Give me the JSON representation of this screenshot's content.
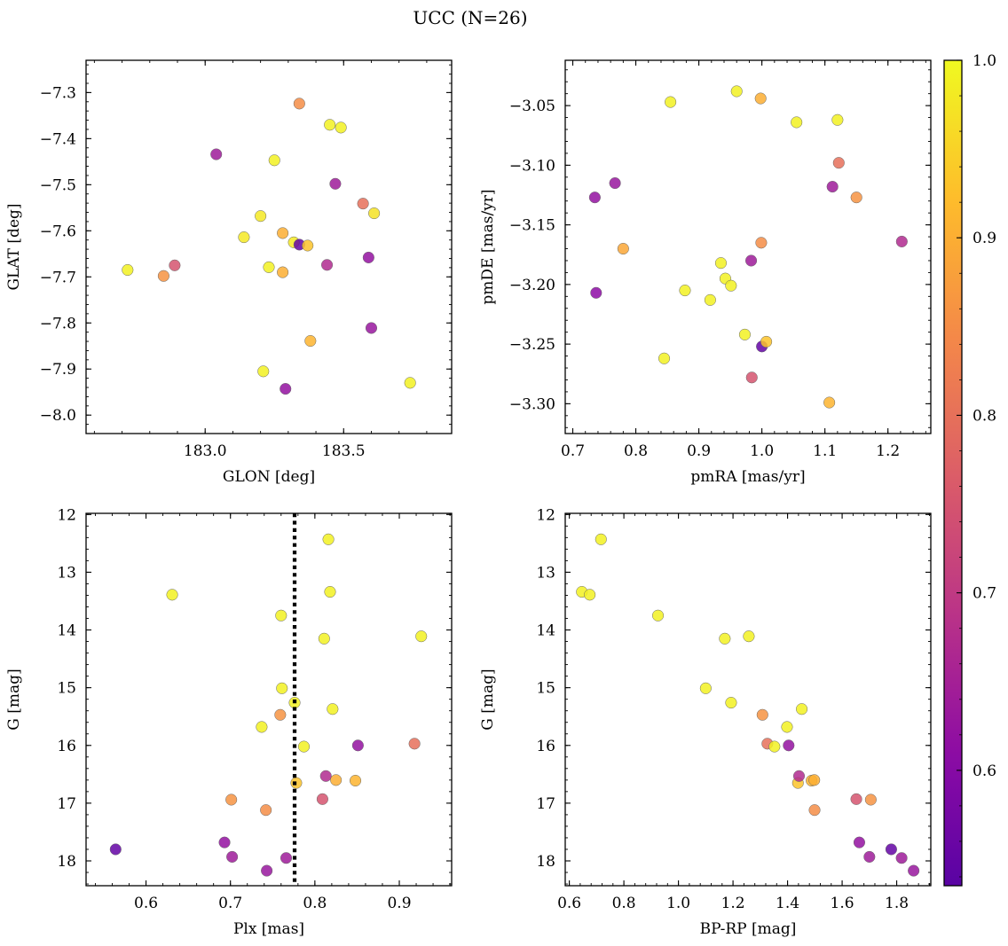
{
  "figure": {
    "title": "UCC (N=26)"
  },
  "colorbar": {
    "range": [
      0.535,
      1.0
    ],
    "ticks": [
      0.6,
      0.7,
      0.8,
      0.9,
      1.0
    ],
    "tick_labels": [
      "0.6",
      "0.7",
      "0.8",
      "0.9",
      "1.0"
    ],
    "colormap": "plasma"
  },
  "chart_data": [
    {
      "type": "scatter",
      "title": "",
      "xlabel": "GLON [deg]",
      "ylabel": "GLAT [deg]",
      "xlim": [
        182.57,
        183.89
      ],
      "ylim": [
        -8.04,
        -7.23
      ],
      "y_inverted": false,
      "xticks": [
        183.0,
        183.5
      ],
      "xtick_labels": [
        "183.0",
        "183.5"
      ],
      "yticks": [
        -7.3,
        -7.4,
        -7.5,
        -7.6,
        -7.7,
        -7.8,
        -7.9,
        -8.0
      ],
      "ytick_labels": [
        "−7.3",
        "−7.4",
        "−7.5",
        "−7.6",
        "−7.7",
        "−7.8",
        "−7.9",
        "−8.0"
      ],
      "x": [
        182.72,
        182.85,
        182.89,
        183.04,
        183.14,
        183.21,
        183.2,
        183.23,
        183.25,
        183.28,
        183.28,
        183.29,
        183.32,
        183.34,
        183.34,
        183.37,
        183.38,
        183.44,
        183.45,
        183.47,
        183.49,
        183.57,
        183.59,
        183.6,
        183.61,
        183.74
      ],
      "y": [
        -7.685,
        -7.698,
        -7.675,
        -7.434,
        -7.614,
        -7.905,
        -7.568,
        -7.679,
        -7.447,
        -7.605,
        -7.69,
        -7.943,
        -7.625,
        -7.324,
        -7.63,
        -7.632,
        -7.839,
        -7.674,
        -7.37,
        -7.498,
        -7.376,
        -7.541,
        -7.658,
        -7.811,
        -7.562,
        -7.93
      ],
      "color_values": [
        0.99,
        0.86,
        0.75,
        0.64,
        0.98,
        0.99,
        0.98,
        0.99,
        0.99,
        0.9,
        0.9,
        0.62,
        0.98,
        0.85,
        0.55,
        0.93,
        0.91,
        0.67,
        0.99,
        0.64,
        0.99,
        0.8,
        0.62,
        0.63,
        0.97,
        0.99
      ]
    },
    {
      "type": "scatter",
      "title": "",
      "xlabel": "pmRA [mas/yr]",
      "ylabel": "pmDE [mas/yr]",
      "xlim": [
        0.688,
        1.268
      ],
      "ylim": [
        -3.325,
        -3.012
      ],
      "y_inverted": false,
      "xticks": [
        0.7,
        0.8,
        0.9,
        1.0,
        1.1,
        1.2
      ],
      "xtick_labels": [
        "0.7",
        "0.8",
        "0.9",
        "1.0",
        "1.1",
        "1.2"
      ],
      "yticks": [
        -3.05,
        -3.1,
        -3.15,
        -3.2,
        -3.25,
        -3.3
      ],
      "ytick_labels": [
        "−3.05",
        "−3.10",
        "−3.15",
        "−3.20",
        "−3.25",
        "−3.30"
      ],
      "x": [
        0.735,
        0.737,
        0.767,
        0.78,
        0.845,
        0.855,
        0.878,
        0.918,
        0.935,
        0.942,
        0.951,
        0.96,
        0.973,
        0.983,
        0.984,
        0.998,
        0.999,
        1.0,
        1.007,
        1.055,
        1.107,
        1.112,
        1.12,
        1.122,
        1.15,
        1.222
      ],
      "y": [
        -3.127,
        -3.207,
        -3.115,
        -3.17,
        -3.262,
        -3.047,
        -3.205,
        -3.213,
        -3.182,
        -3.195,
        -3.201,
        -3.038,
        -3.242,
        -3.18,
        -3.278,
        -3.044,
        -3.165,
        -3.252,
        -3.248,
        -3.064,
        -3.299,
        -3.118,
        -3.062,
        -3.098,
        -3.127,
        -3.164
      ],
      "color_values": [
        0.62,
        0.61,
        0.63,
        0.89,
        0.99,
        0.99,
        0.99,
        0.99,
        0.99,
        0.99,
        0.99,
        0.99,
        0.99,
        0.64,
        0.75,
        0.9,
        0.85,
        0.55,
        0.93,
        0.99,
        0.91,
        0.64,
        0.99,
        0.8,
        0.86,
        0.67
      ]
    },
    {
      "type": "scatter",
      "title": "",
      "xlabel": "Plx [mas]",
      "ylabel": "G [mag]",
      "xlim": [
        0.529,
        0.962
      ],
      "ylim": [
        18.43,
        11.98
      ],
      "y_inverted": true,
      "xticks": [
        0.6,
        0.7,
        0.8,
        0.9
      ],
      "xtick_labels": [
        "0.6",
        "0.7",
        "0.8",
        "0.9"
      ],
      "yticks": [
        12,
        13,
        14,
        15,
        16,
        17,
        18
      ],
      "ytick_labels": [
        "12",
        "13",
        "14",
        "15",
        "16",
        "17",
        "18"
      ],
      "vline_x": 0.776,
      "x": [
        0.564,
        0.631,
        0.693,
        0.701,
        0.702,
        0.737,
        0.742,
        0.743,
        0.759,
        0.76,
        0.761,
        0.766,
        0.776,
        0.778,
        0.787,
        0.809,
        0.811,
        0.813,
        0.816,
        0.818,
        0.821,
        0.825,
        0.848,
        0.851,
        0.918,
        0.926
      ],
      "y": [
        17.8,
        13.39,
        17.68,
        16.94,
        17.93,
        15.68,
        17.12,
        18.17,
        15.47,
        13.75,
        15.01,
        17.95,
        15.26,
        16.65,
        16.02,
        16.93,
        14.15,
        16.53,
        12.43,
        13.34,
        15.37,
        16.6,
        16.61,
        16.0,
        15.97,
        14.11
      ],
      "color_values": [
        0.55,
        0.99,
        0.62,
        0.86,
        0.64,
        0.99,
        0.85,
        0.63,
        0.86,
        0.99,
        0.99,
        0.64,
        0.99,
        0.93,
        0.99,
        0.75,
        0.99,
        0.67,
        0.99,
        0.99,
        0.99,
        0.9,
        0.91,
        0.62,
        0.8,
        0.99
      ]
    },
    {
      "type": "scatter",
      "title": "",
      "xlabel": "BP-RP [mag]",
      "ylabel": "G [mag]",
      "xlim": [
        0.585,
        1.925
      ],
      "ylim": [
        18.43,
        11.98
      ],
      "y_inverted": true,
      "xticks": [
        0.6,
        0.8,
        1.0,
        1.2,
        1.4,
        1.6,
        1.8
      ],
      "xtick_labels": [
        "0.6",
        "0.8",
        "1.0",
        "1.2",
        "1.4",
        "1.6",
        "1.8"
      ],
      "yticks": [
        12,
        13,
        14,
        15,
        16,
        17,
        18
      ],
      "ytick_labels": [
        "12",
        "13",
        "14",
        "15",
        "16",
        "17",
        "18"
      ],
      "x": [
        0.646,
        0.675,
        0.716,
        0.925,
        1.1,
        1.17,
        1.193,
        1.258,
        1.308,
        1.326,
        1.352,
        1.398,
        1.404,
        1.438,
        1.442,
        1.452,
        1.488,
        1.498,
        1.499,
        1.652,
        1.663,
        1.7,
        1.705,
        1.78,
        1.818,
        1.862
      ],
      "y": [
        13.34,
        13.39,
        12.43,
        13.75,
        15.01,
        14.15,
        15.26,
        14.11,
        15.47,
        15.97,
        16.02,
        15.68,
        16.0,
        16.65,
        16.53,
        15.37,
        16.61,
        16.6,
        17.12,
        16.93,
        17.68,
        17.93,
        16.94,
        17.8,
        17.95,
        18.17
      ],
      "color_values": [
        0.99,
        0.99,
        0.99,
        0.99,
        0.99,
        0.99,
        0.99,
        0.99,
        0.86,
        0.8,
        0.99,
        0.99,
        0.62,
        0.93,
        0.67,
        0.99,
        0.91,
        0.9,
        0.85,
        0.75,
        0.62,
        0.64,
        0.86,
        0.55,
        0.64,
        0.63
      ]
    }
  ]
}
